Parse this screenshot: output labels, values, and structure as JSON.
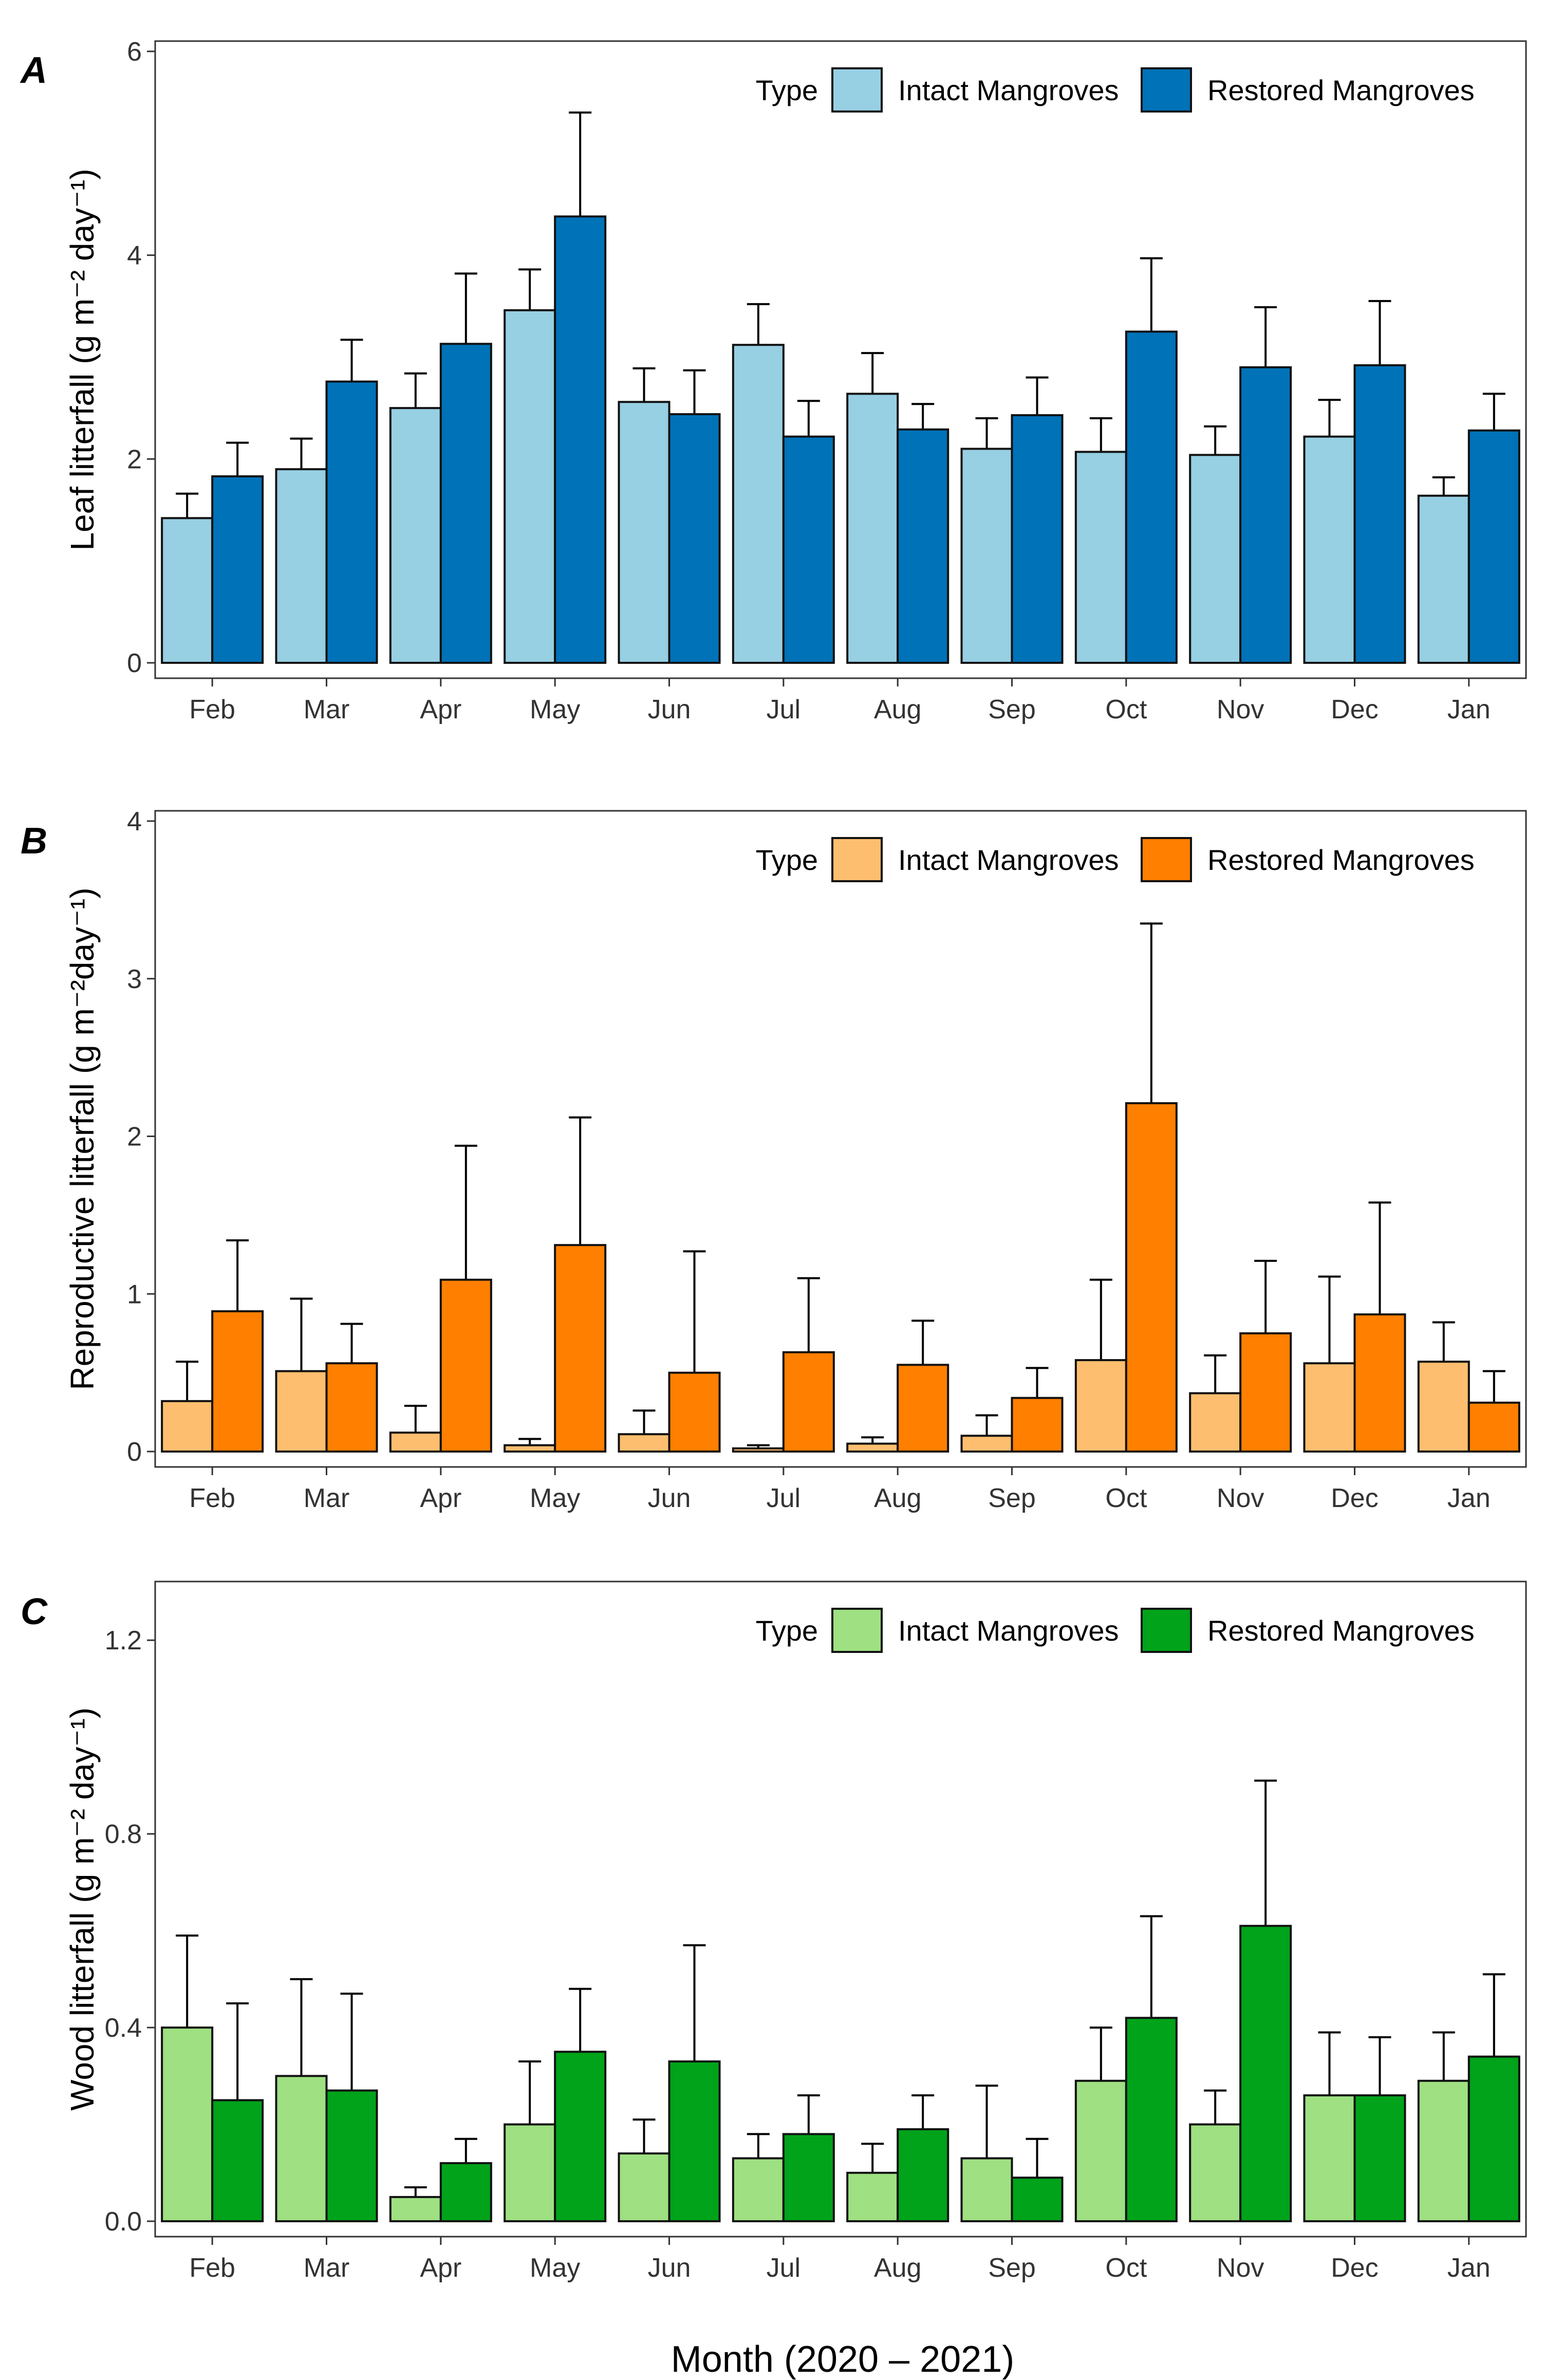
{
  "xlabel": "Month (2020 – 2021)",
  "legend_title": "Type",
  "colors": {
    "leaf_intact": "#97cfe3",
    "leaf_restored": "#0072b8",
    "repro_intact": "#fdbe6f",
    "repro_restored": "#ff7f00",
    "wood_intact": "#9ee082",
    "wood_restored": "#00a31a"
  },
  "chart_data": [
    {
      "panel": "A",
      "type": "bar",
      "ylabel": "Leaf litterfall (g m⁻² day⁻¹)",
      "ylim": [
        0,
        6
      ],
      "yticks": [
        "0",
        "2",
        "4",
        "6"
      ],
      "legend": "top-right",
      "categories": [
        "Feb",
        "Mar",
        "Apr",
        "May",
        "Jun",
        "Jul",
        "Aug",
        "Sep",
        "Oct",
        "Nov",
        "Dec",
        "Jan"
      ],
      "series": [
        {
          "name": "Intact Mangroves",
          "color_key": "leaf_intact",
          "values": [
            1.42,
            1.9,
            2.5,
            3.46,
            2.56,
            3.12,
            2.64,
            2.1,
            2.07,
            2.04,
            2.22,
            1.64
          ],
          "error": [
            0.24,
            0.3,
            0.34,
            0.4,
            0.33,
            0.4,
            0.4,
            0.3,
            0.33,
            0.28,
            0.36,
            0.18
          ]
        },
        {
          "name": "Restored Mangroves",
          "color_key": "leaf_restored",
          "values": [
            1.83,
            2.76,
            3.13,
            4.38,
            2.44,
            2.22,
            2.29,
            2.43,
            3.25,
            2.9,
            2.92,
            2.28
          ],
          "error": [
            0.33,
            0.41,
            0.69,
            1.02,
            0.43,
            0.35,
            0.25,
            0.37,
            0.72,
            0.59,
            0.63,
            0.36
          ]
        }
      ]
    },
    {
      "panel": "B",
      "type": "bar",
      "ylabel": "Reproductive litterfall (g m⁻²day⁻¹)",
      "ylim": [
        0,
        4
      ],
      "yticks": [
        "0",
        "1",
        "2",
        "3",
        "4"
      ],
      "legend": "top-right",
      "categories": [
        "Feb",
        "Mar",
        "Apr",
        "May",
        "Jun",
        "Jul",
        "Aug",
        "Sep",
        "Oct",
        "Nov",
        "Dec",
        "Jan"
      ],
      "series": [
        {
          "name": "Intact Mangroves",
          "color_key": "repro_intact",
          "values": [
            0.32,
            0.51,
            0.12,
            0.04,
            0.11,
            0.02,
            0.05,
            0.1,
            0.58,
            0.37,
            0.56,
            0.57
          ],
          "error": [
            0.25,
            0.46,
            0.17,
            0.04,
            0.15,
            0.02,
            0.04,
            0.13,
            0.51,
            0.24,
            0.55,
            0.25
          ]
        },
        {
          "name": "Restored Mangroves",
          "color_key": "repro_restored",
          "values": [
            0.89,
            0.56,
            1.09,
            1.31,
            0.5,
            0.63,
            0.55,
            0.34,
            2.21,
            0.75,
            0.87,
            0.31
          ]
        },
        {
          "_note": "error bars for restored series"
        }
      ],
      "restored_error": [
        0.45,
        0.25,
        0.85,
        0.81,
        0.77,
        0.47,
        0.28,
        0.19,
        1.14,
        0.46,
        0.71,
        0.2
      ]
    },
    {
      "panel": "C",
      "type": "bar",
      "ylabel": "Wood litterfall (g m⁻² day⁻¹)",
      "ylim": [
        0,
        1.3
      ],
      "yticks": [
        "0.0",
        "0.4",
        "0.8",
        "1.2"
      ],
      "legend": "top-right",
      "categories": [
        "Feb",
        "Mar",
        "Apr",
        "May",
        "Jun",
        "Jul",
        "Aug",
        "Sep",
        "Oct",
        "Nov",
        "Dec",
        "Jan"
      ],
      "series": [
        {
          "name": "Intact Mangroves",
          "color_key": "wood_intact",
          "values": [
            0.4,
            0.3,
            0.05,
            0.2,
            0.14,
            0.13,
            0.1,
            0.13,
            0.29,
            0.2,
            0.26,
            0.29
          ],
          "error": [
            0.19,
            0.2,
            0.02,
            0.13,
            0.07,
            0.05,
            0.06,
            0.15,
            0.11,
            0.07,
            0.13,
            0.1
          ]
        },
        {
          "name": "Restored Mangroves",
          "color_key": "wood_restored",
          "values": [
            0.25,
            0.27,
            0.12,
            0.35,
            0.33,
            0.18,
            0.19,
            0.09,
            0.42,
            0.61,
            0.26,
            0.34
          ],
          "error": [
            0.2,
            0.2,
            0.05,
            0.13,
            0.24,
            0.08,
            0.07,
            0.08,
            0.21,
            0.3,
            0.12,
            0.17
          ]
        }
      ]
    }
  ]
}
